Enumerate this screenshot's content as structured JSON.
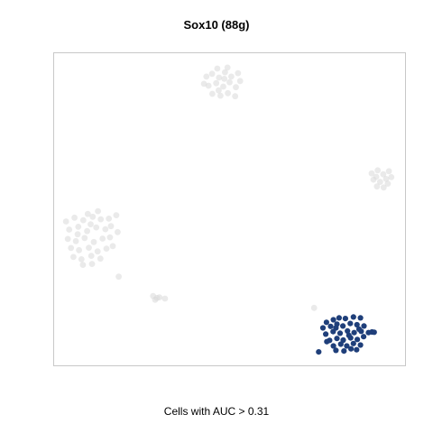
{
  "chart_data": {
    "type": "scatter",
    "title": "Sox10 (88g)",
    "caption": "Cells with AUC > 0.31",
    "xlabel": "",
    "ylabel": "",
    "xlim": [
      0,
      100
    ],
    "ylim": [
      0,
      100
    ],
    "grid": false,
    "legend": "none",
    "colors": {
      "selected": "#1f3f7a",
      "background": "#d9d9d9",
      "frame": "#c8c8c8"
    },
    "series": [
      {
        "role": "background",
        "values": [
          {
            "x": 43.4,
            "y": 92.5
          },
          {
            "x": 45.0,
            "y": 93.4
          },
          {
            "x": 47.0,
            "y": 92.2
          },
          {
            "x": 48.7,
            "y": 93.9
          },
          {
            "x": 50.5,
            "y": 92.5
          },
          {
            "x": 52.4,
            "y": 93.6
          },
          {
            "x": 44.0,
            "y": 89.6
          },
          {
            "x": 46.2,
            "y": 90.4
          },
          {
            "x": 48.2,
            "y": 89.3
          },
          {
            "x": 50.0,
            "y": 90.7
          },
          {
            "x": 51.8,
            "y": 89.1
          },
          {
            "x": 53.0,
            "y": 91.1
          },
          {
            "x": 45.1,
            "y": 87.0
          },
          {
            "x": 47.4,
            "y": 86.4
          },
          {
            "x": 49.5,
            "y": 87.2
          },
          {
            "x": 51.6,
            "y": 86.2
          },
          {
            "x": 42.7,
            "y": 90.2
          },
          {
            "x": 46.5,
            "y": 95.1
          },
          {
            "x": 49.4,
            "y": 95.4
          },
          {
            "x": 48.5,
            "y": 91.8
          },
          {
            "x": 46.9,
            "y": 88.1
          },
          {
            "x": 90.5,
            "y": 61.5
          },
          {
            "x": 92.2,
            "y": 62.5
          },
          {
            "x": 93.8,
            "y": 61.2
          },
          {
            "x": 95.4,
            "y": 62.2
          },
          {
            "x": 91.0,
            "y": 59.5
          },
          {
            "x": 92.9,
            "y": 58.8
          },
          {
            "x": 94.6,
            "y": 59.7
          },
          {
            "x": 96.1,
            "y": 60.3
          },
          {
            "x": 92.0,
            "y": 57.3
          },
          {
            "x": 93.9,
            "y": 57.0
          },
          {
            "x": 91.8,
            "y": 60.4
          },
          {
            "x": 95.1,
            "y": 58.2
          },
          {
            "x": 3.4,
            "y": 46.1
          },
          {
            "x": 5.8,
            "y": 47.3
          },
          {
            "x": 8.3,
            "y": 46.5
          },
          {
            "x": 11.0,
            "y": 47.6
          },
          {
            "x": 13.3,
            "y": 46.8
          },
          {
            "x": 15.6,
            "y": 47.0
          },
          {
            "x": 4.3,
            "y": 43.5
          },
          {
            "x": 6.9,
            "y": 44.4
          },
          {
            "x": 9.4,
            "y": 43.0
          },
          {
            "x": 12.0,
            "y": 44.2
          },
          {
            "x": 14.6,
            "y": 43.6
          },
          {
            "x": 16.2,
            "y": 44.6
          },
          {
            "x": 3.9,
            "y": 40.5
          },
          {
            "x": 6.2,
            "y": 39.8
          },
          {
            "x": 8.7,
            "y": 40.8
          },
          {
            "x": 11.3,
            "y": 39.5
          },
          {
            "x": 13.8,
            "y": 40.6
          },
          {
            "x": 15.9,
            "y": 41.0
          },
          {
            "x": 4.8,
            "y": 37.6
          },
          {
            "x": 7.1,
            "y": 36.9
          },
          {
            "x": 9.9,
            "y": 37.7
          },
          {
            "x": 12.4,
            "y": 36.5
          },
          {
            "x": 14.9,
            "y": 37.4
          },
          {
            "x": 16.7,
            "y": 38.2
          },
          {
            "x": 5.5,
            "y": 34.7
          },
          {
            "x": 7.8,
            "y": 34.0
          },
          {
            "x": 10.6,
            "y": 35.1
          },
          {
            "x": 13.2,
            "y": 34.2
          },
          {
            "x": 8.2,
            "y": 32.2
          },
          {
            "x": 10.8,
            "y": 32.5
          },
          {
            "x": 9.6,
            "y": 48.5
          },
          {
            "x": 12.5,
            "y": 49.4
          },
          {
            "x": 6.7,
            "y": 42.0
          },
          {
            "x": 10.4,
            "y": 45.2
          },
          {
            "x": 17.7,
            "y": 48.1
          },
          {
            "x": 18.1,
            "y": 42.7
          },
          {
            "x": 18.4,
            "y": 28.4
          },
          {
            "x": 28.2,
            "y": 22.2
          },
          {
            "x": 29.3,
            "y": 21.6
          },
          {
            "x": 28.8,
            "y": 21.0
          },
          {
            "x": 30.0,
            "y": 21.8
          },
          {
            "x": 31.6,
            "y": 21.4
          },
          {
            "x": 74.1,
            "y": 18.4
          }
        ]
      },
      {
        "role": "selected",
        "values": [
          {
            "x": 77.6,
            "y": 13.8
          },
          {
            "x": 79.6,
            "y": 14.6
          },
          {
            "x": 81.2,
            "y": 15.2
          },
          {
            "x": 83.0,
            "y": 15.0
          },
          {
            "x": 85.3,
            "y": 15.5
          },
          {
            "x": 87.3,
            "y": 15.2
          },
          {
            "x": 76.6,
            "y": 12.0
          },
          {
            "x": 78.8,
            "y": 12.5
          },
          {
            "x": 80.6,
            "y": 13.2
          },
          {
            "x": 82.3,
            "y": 12.6
          },
          {
            "x": 84.4,
            "y": 13.4
          },
          {
            "x": 86.3,
            "y": 13.0
          },
          {
            "x": 88.3,
            "y": 12.6
          },
          {
            "x": 77.4,
            "y": 10.0
          },
          {
            "x": 79.5,
            "y": 10.8
          },
          {
            "x": 81.5,
            "y": 10.3
          },
          {
            "x": 83.6,
            "y": 11.0
          },
          {
            "x": 85.5,
            "y": 10.5
          },
          {
            "x": 87.5,
            "y": 10.9
          },
          {
            "x": 89.6,
            "y": 10.5
          },
          {
            "x": 78.5,
            "y": 8.0
          },
          {
            "x": 80.6,
            "y": 8.6
          },
          {
            "x": 82.4,
            "y": 8.1
          },
          {
            "x": 84.5,
            "y": 8.8
          },
          {
            "x": 86.4,
            "y": 8.3
          },
          {
            "x": 88.2,
            "y": 9.2
          },
          {
            "x": 79.6,
            "y": 6.2
          },
          {
            "x": 81.7,
            "y": 6.8
          },
          {
            "x": 83.4,
            "y": 6.2
          },
          {
            "x": 85.3,
            "y": 7.0
          },
          {
            "x": 87.3,
            "y": 6.5
          },
          {
            "x": 82.6,
            "y": 4.6
          },
          {
            "x": 84.6,
            "y": 5.3
          },
          {
            "x": 86.2,
            "y": 5.0
          },
          {
            "x": 80.3,
            "y": 4.8
          },
          {
            "x": 77.7,
            "y": 7.6
          },
          {
            "x": 75.4,
            "y": 4.3
          },
          {
            "x": 90.6,
            "y": 10.7
          },
          {
            "x": 91.2,
            "y": 10.6
          },
          {
            "x": 80.3,
            "y": 12.0
          },
          {
            "x": 84.0,
            "y": 9.6
          },
          {
            "x": 86.9,
            "y": 11.6
          }
        ]
      }
    ]
  }
}
